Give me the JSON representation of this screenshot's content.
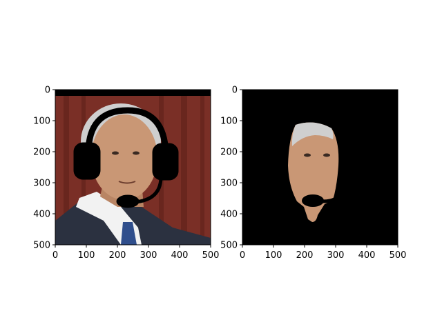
{
  "chart_data": [
    {
      "type": "image",
      "panel": "left",
      "description_content": "photo of a man with a black headset drawn over the head",
      "xlim": [
        0,
        500
      ],
      "ylim": [
        500,
        0
      ],
      "xticks": [
        0,
        100,
        200,
        300,
        400,
        500
      ],
      "yticks": [
        0,
        100,
        200,
        300,
        400,
        500
      ],
      "xtick_labels": [
        "0",
        "100",
        "200",
        "300",
        "400",
        "500"
      ],
      "ytick_labels": [
        "0",
        "100",
        "200",
        "300",
        "400",
        "500"
      ],
      "title": "",
      "xlabel": "",
      "ylabel": ""
    },
    {
      "type": "image",
      "panel": "right",
      "description_content": "segmented face region on black background",
      "xlim": [
        0,
        500
      ],
      "ylim": [
        500,
        0
      ],
      "xticks": [
        0,
        100,
        200,
        300,
        400,
        500
      ],
      "yticks": [
        0,
        100,
        200,
        300,
        400,
        500
      ],
      "xtick_labels": [
        "0",
        "100",
        "200",
        "300",
        "400",
        "500"
      ],
      "ytick_labels": [
        "0",
        "100",
        "200",
        "300",
        "400",
        "500"
      ],
      "title": "",
      "xlabel": "",
      "ylabel": ""
    }
  ],
  "colors": {
    "curtain": "#7a2f26",
    "curtain_dark": "#5a1f19",
    "suit": "#2b3140",
    "shirt": "#f2f2f2",
    "tie": "#2f4e8c",
    "skin": "#c99775",
    "hair": "#cfcfcf",
    "headset": "#000000",
    "mask_bg": "#000000"
  }
}
